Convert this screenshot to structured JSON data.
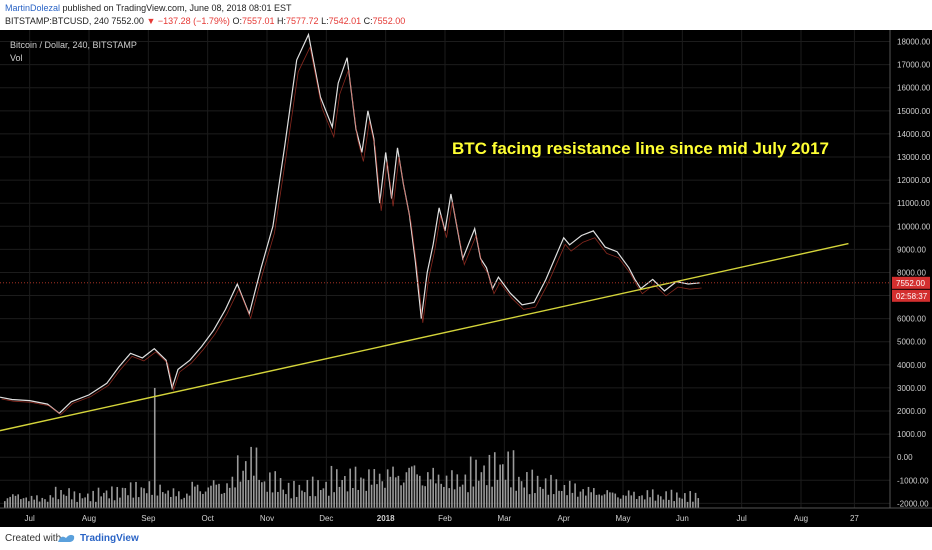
{
  "header": {
    "author": "MartinDolezal",
    "published": "published on TradingView.com, June 08, 2018 08:01 EST",
    "symbol": "BITSTAMP:BTCUSD, 240",
    "last": "7552.00",
    "arrow": "▼",
    "change": "−137.28 (−1.79%)",
    "o_label": "O:",
    "o_val": "7557.01",
    "h_label": "H:",
    "h_val": "7577.72",
    "l_label": "L:",
    "l_val": "7542.01",
    "c_label": "C:",
    "c_val": "7552.00"
  },
  "footer": {
    "created": "Created with",
    "brand": "TradingView"
  },
  "chart_data": {
    "type": "line",
    "title": "Bitcoin / Dollar, 240, BITSTAMP",
    "volume_label": "Vol",
    "annotation": "BTC facing resistance line since mid July 2017",
    "price_tag": "7552.00",
    "countdown_tag": "02:58:37",
    "x_ticks": [
      "Jul",
      "Aug",
      "Sep",
      "Oct",
      "Nov",
      "Dec",
      "2018",
      "Feb",
      "Mar",
      "Apr",
      "May",
      "Jun",
      "Jul",
      "Aug",
      "27"
    ],
    "y_ticks": [
      "18000.00",
      "17000.00",
      "16000.00",
      "15000.00",
      "14000.00",
      "13000.00",
      "12000.00",
      "11000.00",
      "10000.00",
      "9000.00",
      "8000.00",
      "7000.00",
      "6000.00",
      "5000.00",
      "4000.00",
      "3000.00",
      "2000.00",
      "1000.00",
      "0.00",
      "-1000.00",
      "-2000.00"
    ],
    "x_tick_positions": [
      0.5,
      1.5,
      2.5,
      3.5,
      4.5,
      5.5,
      6.5,
      7.5,
      8.5,
      9.5,
      10.5,
      11.5,
      12.5,
      13.5,
      14.4
    ],
    "ylim": [
      -2200,
      18500
    ],
    "series": [
      {
        "x": [
          0,
          0.2,
          0.5,
          0.8,
          1.0,
          1.2,
          1.5,
          1.8,
          2.0,
          2.2,
          2.4,
          2.6,
          2.8,
          2.9,
          3.0,
          3.2,
          3.4,
          3.6,
          3.8,
          4.0,
          4.2,
          4.4,
          4.6,
          4.8,
          5.0,
          5.2,
          5.4,
          5.6,
          5.7,
          5.85,
          6.0,
          6.1,
          6.2,
          6.3,
          6.4,
          6.5,
          6.6,
          6.7,
          6.8,
          6.9,
          7.0,
          7.1,
          7.2,
          7.3,
          7.4,
          7.5,
          7.6,
          7.8,
          8.0,
          8.1,
          8.2,
          8.3,
          8.4,
          8.6,
          8.8,
          9.0,
          9.2,
          9.4,
          9.5,
          9.6,
          9.8,
          10.0,
          10.2,
          10.4,
          10.6,
          10.7,
          10.8,
          11.0,
          11.2,
          11.4,
          11.6,
          11.8
        ],
        "y": [
          2600,
          2500,
          2450,
          2300,
          1900,
          2400,
          2700,
          3200,
          3900,
          4500,
          4300,
          4700,
          4200,
          3000,
          3800,
          4200,
          4800,
          5500,
          6400,
          7500,
          6200,
          8200,
          10000,
          13500,
          17200,
          18300,
          15600,
          14300,
          16200,
          17300,
          14200,
          13200,
          15000,
          13800,
          11000,
          13200,
          11200,
          13400,
          11800,
          10500,
          8500,
          6000,
          8000,
          9200,
          10800,
          9800,
          11400,
          8600,
          9900,
          8600,
          8200,
          7300,
          7800,
          7100,
          6600,
          6700,
          7700,
          8900,
          9500,
          9200,
          9600,
          9800,
          9100,
          8900,
          8200,
          7700,
          7300,
          7700,
          7200,
          7600,
          7500,
          7552
        ]
      }
    ],
    "trendline": {
      "x": [
        0,
        14.3
      ],
      "y": [
        1150,
        9250
      ]
    },
    "volume": {
      "max_label": "",
      "levels": [
        0.25,
        0.2,
        0.3,
        0.22,
        0.28,
        0.35,
        0.4,
        0.3,
        0.45,
        0.5,
        0.9,
        0.5,
        0.35,
        0.4,
        0.55,
        0.6,
        0.7,
        0.8,
        0.65,
        0.55,
        0.7,
        0.75,
        0.5,
        0.45,
        0.4,
        0.35,
        0.3,
        0.28,
        0.25,
        0.22
      ]
    }
  }
}
